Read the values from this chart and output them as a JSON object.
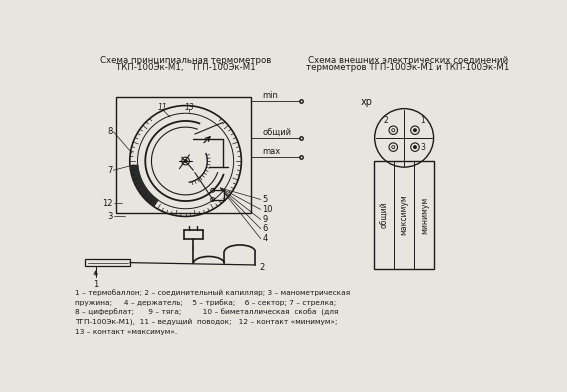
{
  "title_left_line1": "Схема принципиальная термометров",
  "title_left_line2": "ТКП-100Эк-М1,   ТГП-100Эк-М1",
  "title_right_line1": "Схема внешних электрических соединений",
  "title_right_line2": "термометров ТГП-100Эк-М1 и ТКП-100Эк-М1",
  "label_min": "min",
  "label_obshiy": "общий",
  "label_max": "max",
  "label_xr": "хр",
  "label_maximum": "максимум",
  "label_minimum": "минимум",
  "label_obshiy_vert": "общий",
  "caption": "1 – термобаллон; 2 – соединительный капилляр; 3 – манометрическая\nпружина;     4 – держатель;    5 – трибка;    6 – сектор; 7 – стрелка;\n8 – циферблат;      9 – тяга;         10 – биметаллическая  скоба  (для\nТГП-100Эк-М1),  11 – ведущий  поводок;   12 – контакт «минимум»;\n13 – контакт «максимум».",
  "bg_color": "#e8e5df",
  "line_color": "#1a1a1a",
  "text_color": "#1a1a1a"
}
